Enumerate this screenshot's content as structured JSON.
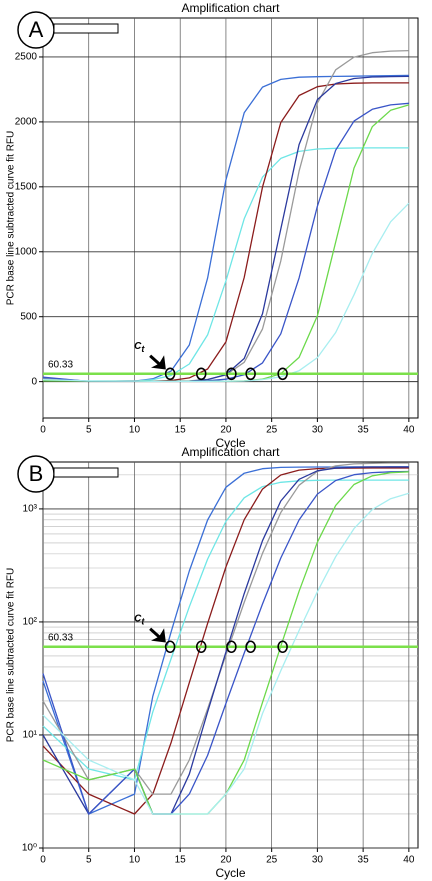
{
  "chart_data": [
    {
      "type": "line",
      "panel": "A",
      "title": "Amplification chart",
      "x_label": "Cycle",
      "y_label": "PCR base line subtracted curve fit RFU",
      "log_scale": false,
      "grid": true,
      "xlim": [
        0,
        41
      ],
      "xticks": [
        0,
        5,
        10,
        15,
        20,
        25,
        30,
        35,
        40
      ],
      "ylim": [
        -280,
        2800
      ],
      "yticks": [
        0,
        500,
        1000,
        1500,
        2000,
        2500
      ],
      "threshold": 60.33,
      "threshold_color": "#7be04a",
      "ct_cycles": [
        13.9,
        17.3,
        20.6,
        22.7,
        26.2
      ],
      "annotation": {
        "main": "C",
        "sub": "t"
      },
      "x": [
        0,
        5,
        10,
        12,
        14,
        16,
        18,
        20,
        22,
        24,
        26,
        28,
        30,
        32,
        34,
        36,
        38,
        40
      ],
      "series": [
        {
          "color": "#3b6fd6",
          "values": [
            30,
            2,
            3,
            22,
            81,
            282,
            797,
            1553,
            2070,
            2268,
            2327,
            2344,
            2348,
            2350,
            2352,
            2354,
            2356,
            2358
          ]
        },
        {
          "color": "#6ee6e6",
          "values": [
            12,
            5,
            4,
            16,
            47,
            136,
            360,
            776,
            1254,
            1575,
            1719,
            1773,
            1791,
            1797,
            1799,
            1800,
            1800,
            1800
          ]
        },
        {
          "color": "#8b1c1c",
          "values": [
            8,
            3,
            2,
            3,
            8.5,
            29,
            97,
            306,
            802,
            1498,
            1995,
            2203,
            2271,
            2292,
            2298,
            2300,
            2300,
            2300
          ]
        },
        {
          "color": "#9a9a9a",
          "values": [
            20,
            4,
            5,
            3,
            3,
            6,
            17,
            51,
            149,
            405,
            930,
            1621,
            2145,
            2401,
            2499,
            2533,
            2545,
            2549
          ]
        },
        {
          "color": "#2b3a9e",
          "values": [
            10,
            2,
            5,
            2,
            2,
            4.5,
            16,
            54,
            178,
            523,
            1175,
            1826,
            2172,
            2296,
            2334,
            2346,
            2349,
            2350
          ]
        },
        {
          "color": "#3a55c8",
          "values": [
            35,
            2,
            5,
            2,
            2,
            3,
            6.6,
            19,
            53,
            144,
            368,
            799,
            1351,
            1783,
            2006,
            2097,
            2131,
            2143
          ]
        },
        {
          "color": "#6bd94a",
          "values": [
            6,
            4,
            5,
            2,
            2,
            2,
            2,
            3,
            6,
            19.4,
            61,
            187,
            507,
            1075,
            1644,
            1963,
            2089,
            2131
          ]
        },
        {
          "color": "#a8eef0",
          "values": [
            15,
            6,
            4,
            2,
            2,
            2,
            2,
            3,
            5,
            15.5,
            37,
            84,
            185,
            378,
            669,
            987,
            1231,
            1374
          ]
        }
      ]
    },
    {
      "type": "line",
      "panel": "B",
      "title": "Amplification chart",
      "x_label": "Cycle",
      "y_label": "PCR base line subtracted curve fit RFU",
      "log_scale": true,
      "grid": true,
      "xlim": [
        0,
        41
      ],
      "xticks": [
        0,
        5,
        10,
        15,
        20,
        25,
        30,
        35,
        40
      ],
      "ylim": [
        1,
        2600
      ],
      "yticks": [
        {
          "value": 1,
          "label": "10⁰"
        },
        {
          "value": 10,
          "label": "10¹"
        },
        {
          "value": 100,
          "label": "10²"
        },
        {
          "value": 1000,
          "label": "10³"
        }
      ],
      "yminorticks": [
        2,
        3,
        4,
        5,
        6,
        7,
        8,
        9,
        20,
        30,
        40,
        50,
        60,
        70,
        80,
        90,
        200,
        300,
        400,
        500,
        600,
        700,
        800,
        900,
        2000
      ],
      "threshold": 60.33,
      "threshold_color": "#7be04a",
      "ct_cycles": [
        13.9,
        17.3,
        20.6,
        22.7,
        26.2
      ],
      "annotation": {
        "main": "C",
        "sub": "t"
      },
      "x": [
        0,
        5,
        10,
        12,
        14,
        16,
        18,
        20,
        22,
        24,
        26,
        28,
        30,
        32,
        34,
        36,
        38,
        40
      ],
      "series": [
        {
          "color": "#3b6fd6",
          "values": [
            30,
            2,
            3,
            22,
            81,
            282,
            797,
            1553,
            2070,
            2268,
            2327,
            2344,
            2348,
            2350,
            2352,
            2354,
            2356,
            2358
          ]
        },
        {
          "color": "#6ee6e6",
          "values": [
            12,
            5,
            4,
            16,
            47,
            136,
            360,
            776,
            1254,
            1575,
            1719,
            1773,
            1791,
            1797,
            1799,
            1800,
            1800,
            1800
          ]
        },
        {
          "color": "#8b1c1c",
          "values": [
            8,
            3,
            2,
            3,
            8.5,
            29,
            97,
            306,
            802,
            1498,
            1995,
            2203,
            2271,
            2292,
            2298,
            2300,
            2300,
            2300
          ]
        },
        {
          "color": "#9a9a9a",
          "values": [
            20,
            4,
            5,
            3,
            3,
            6,
            17,
            51,
            149,
            405,
            930,
            1621,
            2145,
            2401,
            2499,
            2533,
            2545,
            2549
          ]
        },
        {
          "color": "#2b3a9e",
          "values": [
            10,
            2,
            5,
            2,
            2,
            4.5,
            16,
            54,
            178,
            523,
            1175,
            1826,
            2172,
            2296,
            2334,
            2346,
            2349,
            2350
          ]
        },
        {
          "color": "#3a55c8",
          "values": [
            35,
            2,
            5,
            2,
            2,
            3,
            6.6,
            19,
            53,
            144,
            368,
            799,
            1351,
            1783,
            2006,
            2097,
            2131,
            2143
          ]
        },
        {
          "color": "#6bd94a",
          "values": [
            6,
            4,
            5,
            2,
            2,
            2,
            2,
            3,
            6,
            19.4,
            61,
            187,
            507,
            1075,
            1644,
            1963,
            2089,
            2131
          ]
        },
        {
          "color": "#a8eef0",
          "values": [
            15,
            6,
            4,
            2,
            2,
            2,
            2,
            3,
            5,
            15.5,
            37,
            84,
            185,
            378,
            669,
            987,
            1231,
            1374
          ]
        }
      ]
    }
  ]
}
